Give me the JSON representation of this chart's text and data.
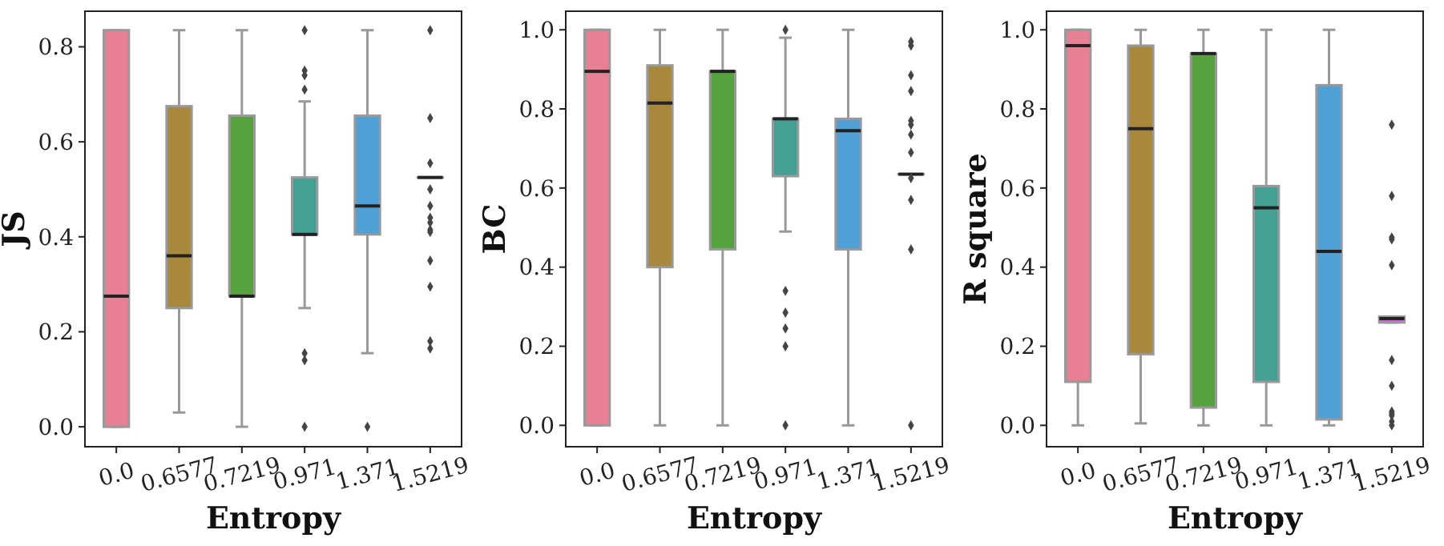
{
  "chart_data": [
    {
      "type": "box",
      "xlabel": "Entropy",
      "ylabel": "JS",
      "categories": [
        "0.0",
        "0.6577",
        "0.7219",
        "0.971",
        "1.371",
        "1.5219"
      ],
      "colors": [
        "#e88094",
        "#a8893c",
        "#56a23e",
        "#45a094",
        "#50a0d8",
        "#d55fde"
      ],
      "ylim": [
        -0.042,
        0.875
      ],
      "yticks": [
        {
          "value": 0,
          "label": "0.0"
        },
        {
          "value": 0.2,
          "label": "0.2"
        },
        {
          "value": 0.4,
          "label": "0.4"
        },
        {
          "value": 0.6,
          "label": "0.6"
        },
        {
          "value": 0.8,
          "label": "0.8"
        }
      ],
      "boxes": [
        {
          "low": 0,
          "q1": 0,
          "median": 0.275,
          "q3": 0.835,
          "high": 0.835
        },
        {
          "low": 0.03,
          "q1": 0.25,
          "median": 0.36,
          "q3": 0.675,
          "high": 0.835
        },
        {
          "low": 0,
          "q1": 0.275,
          "median": 0.275,
          "q3": 0.655,
          "high": 0.835
        },
        {
          "low": 0.25,
          "q1": 0.405,
          "median": 0.405,
          "q3": 0.525,
          "high": 0.685,
          "outliers": [
            0.835,
            0.75,
            0.74,
            0.71,
            0.155,
            0.14,
            0
          ]
        },
        {
          "low": 0.155,
          "q1": 0.405,
          "median": 0.465,
          "q3": 0.655,
          "high": 0.835,
          "outliers": [
            0
          ]
        },
        {
          "low": 0.525,
          "q1": 0.525,
          "median": 0.525,
          "q3": 0.525,
          "high": 0.525,
          "outliers": [
            0.835,
            0.65,
            0.555,
            0.5,
            0.465,
            0.44,
            0.43,
            0.415,
            0.41,
            0.35,
            0.295,
            0.18,
            0.165
          ]
        }
      ]
    },
    {
      "type": "box",
      "xlabel": "Entropy",
      "ylabel": "BC",
      "categories": [
        "0.0",
        "0.6577",
        "0.7219",
        "0.971",
        "1.371",
        "1.5219"
      ],
      "colors": [
        "#e88094",
        "#a8893c",
        "#56a23e",
        "#45a094",
        "#50a0d8",
        "#d55fde"
      ],
      "ylim": [
        -0.054,
        1.047
      ],
      "yticks": [
        {
          "value": 0,
          "label": "0.0"
        },
        {
          "value": 0.2,
          "label": "0.2"
        },
        {
          "value": 0.4,
          "label": "0.4"
        },
        {
          "value": 0.6,
          "label": "0.6"
        },
        {
          "value": 0.8,
          "label": "0.8"
        },
        {
          "value": 1,
          "label": "1.0"
        }
      ],
      "boxes": [
        {
          "low": 0,
          "q1": 0,
          "median": 0.895,
          "q3": 1,
          "high": 1
        },
        {
          "low": 0,
          "q1": 0.4,
          "median": 0.815,
          "q3": 0.91,
          "high": 1
        },
        {
          "low": 0,
          "q1": 0.445,
          "median": 0.895,
          "q3": 0.895,
          "high": 1
        },
        {
          "low": 0.49,
          "q1": 0.63,
          "median": 0.775,
          "q3": 0.775,
          "high": 0.98,
          "outliers": [
            1,
            0.34,
            0.285,
            0.245,
            0.2,
            0
          ]
        },
        {
          "low": 0,
          "q1": 0.445,
          "median": 0.745,
          "q3": 0.775,
          "high": 1
        },
        {
          "low": 0.635,
          "q1": 0.635,
          "median": 0.635,
          "q3": 0.635,
          "high": 0.635,
          "outliers": [
            0.97,
            0.96,
            0.885,
            0.845,
            0.77,
            0.76,
            0.735,
            0.69,
            0.625,
            0.57,
            0.445,
            0
          ]
        }
      ]
    },
    {
      "type": "box",
      "xlabel": "Entropy",
      "ylabel": "R square",
      "categories": [
        "0.0",
        "0.6577",
        "0.7219",
        "0.971",
        "1.371",
        "1.5219"
      ],
      "colors": [
        "#e88094",
        "#a8893c",
        "#56a23e",
        "#45a094",
        "#50a0d8",
        "#d55fde"
      ],
      "ylim": [
        -0.054,
        1.047
      ],
      "yticks": [
        {
          "value": 0,
          "label": "0.0"
        },
        {
          "value": 0.2,
          "label": "0.2"
        },
        {
          "value": 0.4,
          "label": "0.4"
        },
        {
          "value": 0.6,
          "label": "0.6"
        },
        {
          "value": 0.8,
          "label": "0.8"
        },
        {
          "value": 1,
          "label": "1.0"
        }
      ],
      "boxes": [
        {
          "low": 0,
          "q1": 0.11,
          "median": 0.96,
          "q3": 1,
          "high": 1
        },
        {
          "low": 0.005,
          "q1": 0.18,
          "median": 0.75,
          "q3": 0.96,
          "high": 1
        },
        {
          "low": 0,
          "q1": 0.045,
          "median": 0.94,
          "q3": 0.94,
          "high": 1
        },
        {
          "low": 0,
          "q1": 0.11,
          "median": 0.55,
          "q3": 0.605,
          "high": 1
        },
        {
          "low": 0,
          "q1": 0.015,
          "median": 0.44,
          "q3": 0.86,
          "high": 1
        },
        {
          "low": 0.26,
          "q1": 0.26,
          "median": 0.27,
          "q3": 0.275,
          "high": 0.275,
          "outliers": [
            0.76,
            0.58,
            0.475,
            0.47,
            0.405,
            0.165,
            0.1,
            0.035,
            0.03,
            0.025,
            0.01,
            0
          ]
        }
      ]
    }
  ]
}
